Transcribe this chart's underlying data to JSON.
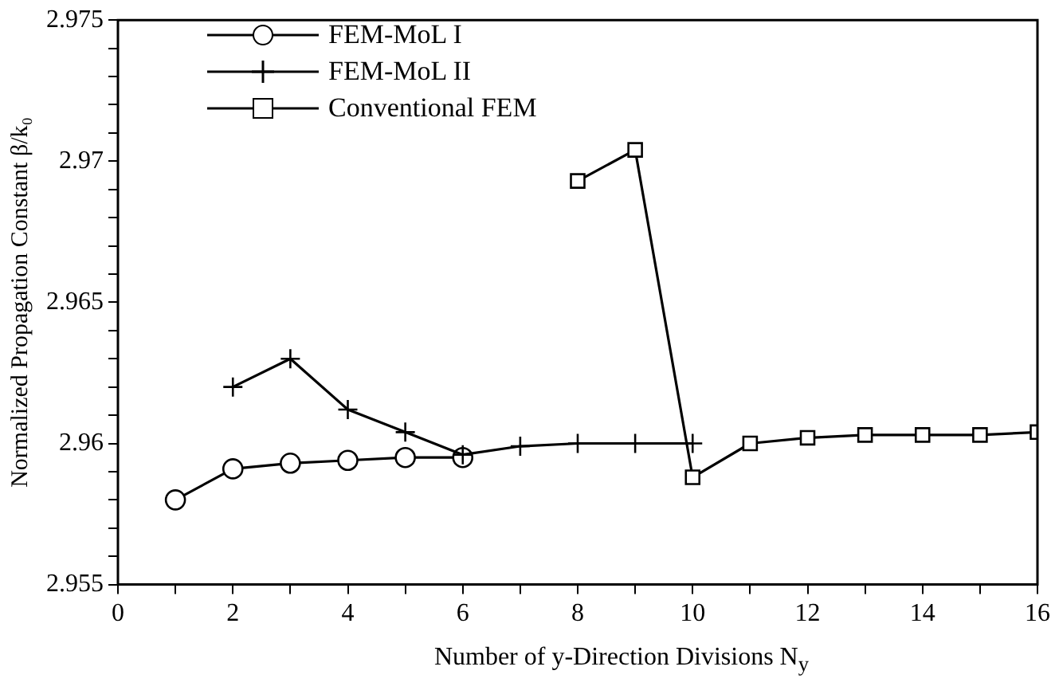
{
  "chart_data": {
    "type": "line",
    "xlabel": "Number of y-Direction Divisions N$_{y}$",
    "ylabel": "Normalized Propagation Constant β/k₀",
    "xlim": [
      0,
      16
    ],
    "ylim": [
      2.955,
      2.975
    ],
    "xticks": [
      0,
      {
        "value": 1,
        "label": null
      },
      2,
      {
        "value": 3,
        "label": null
      },
      4,
      {
        "value": 5,
        "label": null
      },
      6,
      {
        "value": 7,
        "label": null
      },
      8,
      {
        "value": 9,
        "label": null
      },
      10,
      {
        "value": 11,
        "label": null
      },
      12,
      {
        "value": 13,
        "label": null
      },
      14,
      {
        "value": 15,
        "label": null
      },
      16
    ],
    "yticks": [
      2.955,
      {
        "value": 2.956,
        "label": null
      },
      {
        "value": 2.957,
        "label": null
      },
      {
        "value": 2.958,
        "label": null
      },
      {
        "value": 2.959,
        "label": null
      },
      2.96,
      {
        "value": 2.961,
        "label": null
      },
      {
        "value": 2.962,
        "label": null
      },
      {
        "value": 2.963,
        "label": null
      },
      {
        "value": 2.964,
        "label": null
      },
      2.965,
      {
        "value": 2.966,
        "label": null
      },
      {
        "value": 2.967,
        "label": null
      },
      {
        "value": 2.968,
        "label": null
      },
      {
        "value": 2.969,
        "label": null
      },
      2.97,
      {
        "value": 2.971,
        "label": null
      },
      {
        "value": 2.972,
        "label": null
      },
      {
        "value": 2.973,
        "label": null
      },
      {
        "value": 2.974,
        "label": null
      },
      2.975
    ],
    "grid": false,
    "legend": "top left",
    "line_style": "solid",
    "series": [
      {
        "name": "FEM-MoL I",
        "color": "#000000",
        "marker": "circle",
        "x": [
          1,
          2,
          3,
          4,
          5,
          6
        ],
        "values": [
          2.958,
          2.9591,
          2.9593,
          2.9594,
          2.9595,
          2.9595
        ]
      },
      {
        "name": "FEM-MoL II",
        "color": "#000000",
        "marker": "cross",
        "x": [
          2,
          3,
          4,
          5,
          6,
          7,
          8,
          9,
          10
        ],
        "values": [
          2.962,
          2.963,
          2.9612,
          2.9604,
          2.9596,
          2.9599,
          2.96,
          2.96,
          2.96
        ]
      },
      {
        "name": "Conventional FEM",
        "color": "#000000",
        "marker": "square",
        "x": [
          8,
          9,
          10,
          11,
          12,
          13,
          14,
          15,
          16
        ],
        "values": [
          2.9693,
          2.9704,
          2.9588,
          2.96,
          2.9602,
          2.9603,
          2.9603,
          2.9603,
          2.9604
        ]
      }
    ]
  }
}
